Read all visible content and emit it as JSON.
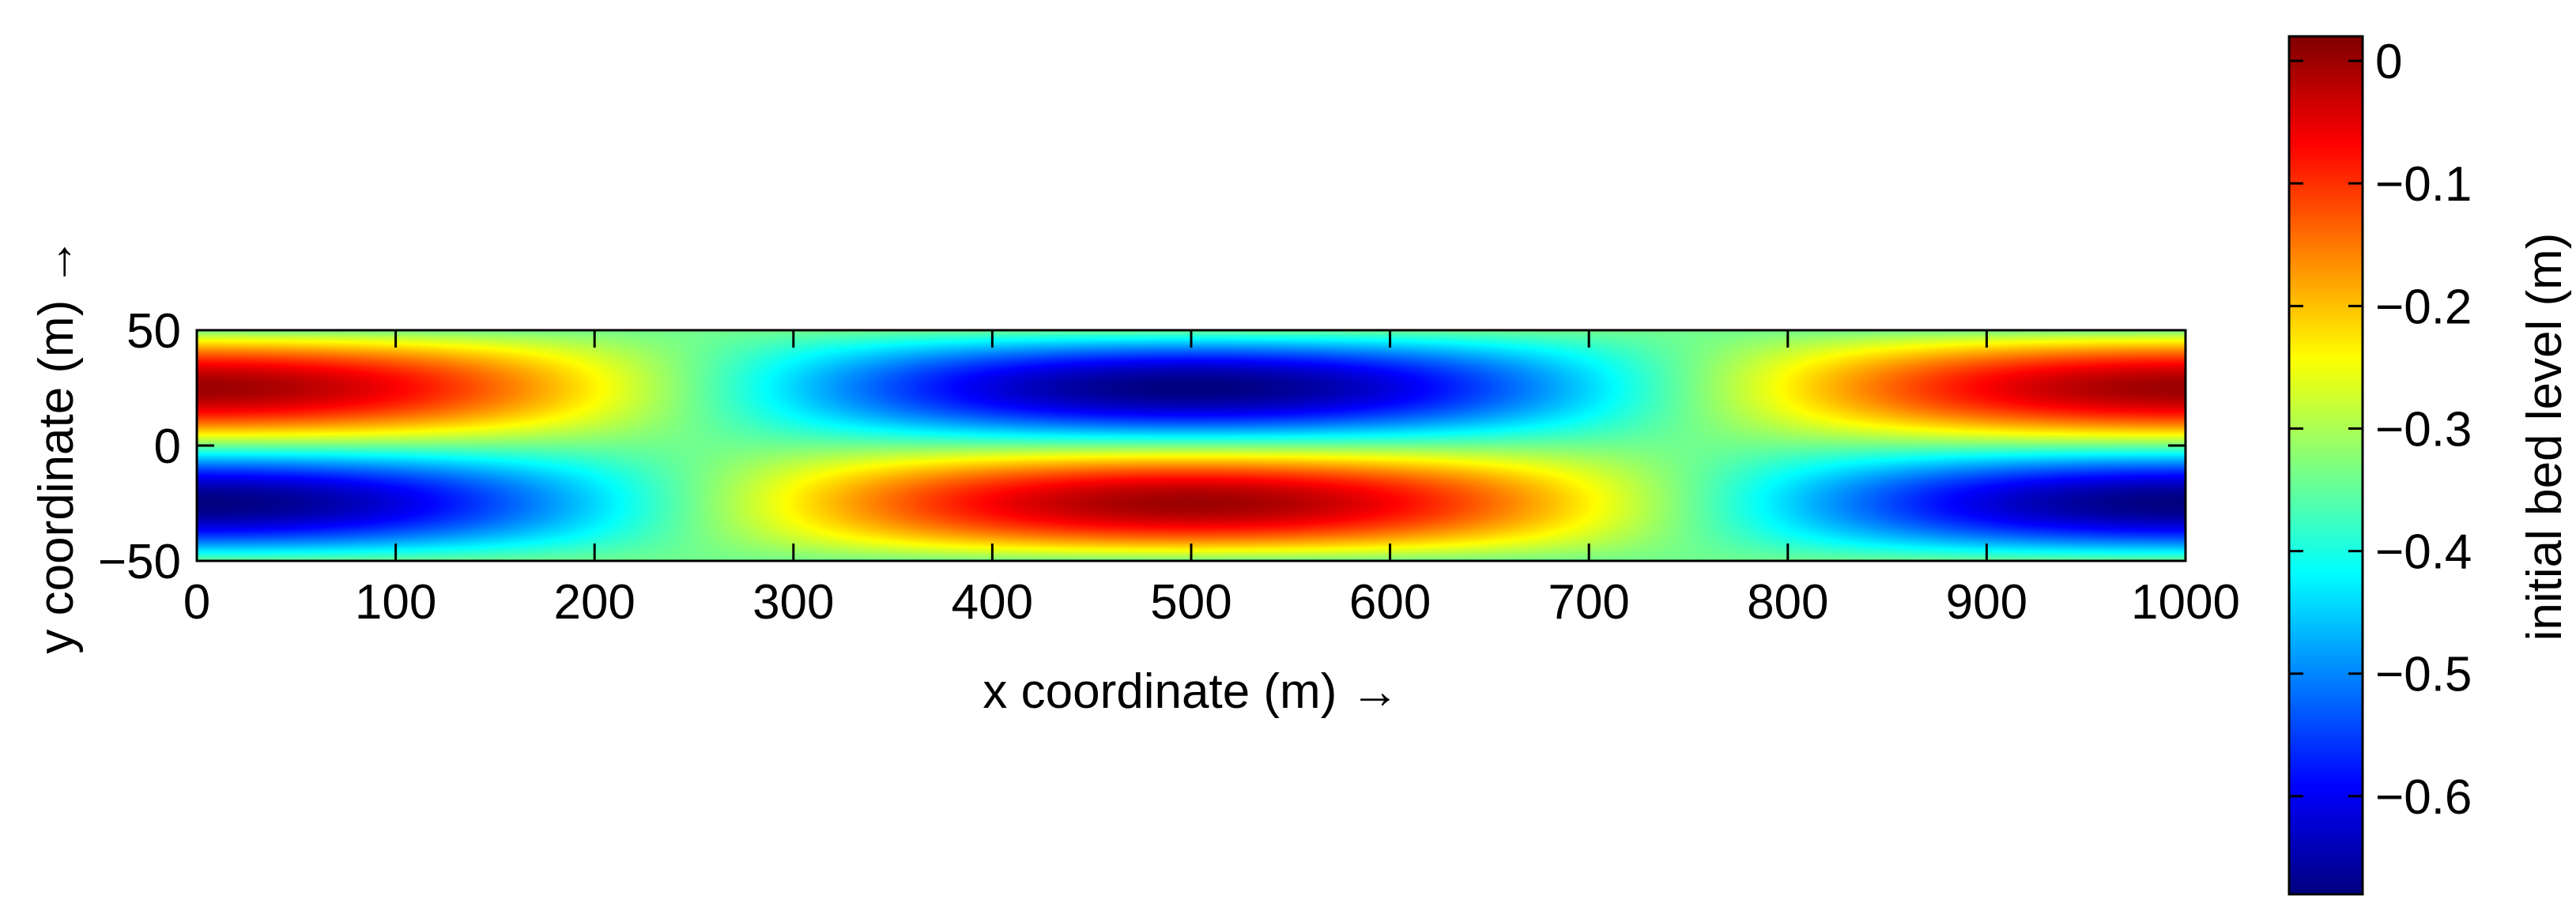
{
  "chart_data": {
    "type": "heatmap",
    "title": "",
    "xlabel": "x coordinate (m) →",
    "ylabel": "y coordinate (m) →",
    "colorbar_label": "initial bed level (m)",
    "x_range": [
      0,
      1000
    ],
    "y_range": [
      -50,
      50
    ],
    "x_ticks": [
      0,
      100,
      200,
      300,
      400,
      500,
      600,
      700,
      800,
      900,
      1000
    ],
    "x_tick_labels": [
      "0",
      "100",
      "200",
      "300",
      "400",
      "500",
      "600",
      "700",
      "800",
      "900",
      "1000"
    ],
    "y_ticks": [
      -50,
      0,
      50
    ],
    "y_tick_labels": [
      "−50",
      "0",
      "50"
    ],
    "colorbar_range": [
      -0.68,
      0.02
    ],
    "colorbar_ticks": [
      0,
      -0.1,
      -0.2,
      -0.3,
      -0.4,
      -0.5,
      -0.6
    ],
    "colorbar_tick_labels": [
      "0",
      "−0.1",
      "−0.2",
      "−0.3",
      "−0.4",
      "−0.5",
      "−0.6"
    ],
    "colormap": "jet",
    "grid": false,
    "field": {
      "description_of_values": "bed level z(x,y) in metres",
      "mean_level": -0.34,
      "amplitude": 0.34,
      "x_period": 1000,
      "y_period": 100,
      "notable_points": [
        {
          "x": 500,
          "y": 25,
          "z": -0.68
        },
        {
          "x": 500,
          "y": -25,
          "z": 0.0
        },
        {
          "x": 0,
          "y": -25,
          "z": -0.68
        },
        {
          "x": 1000,
          "y": -25,
          "z": -0.68
        },
        {
          "x": 0,
          "y": 25,
          "z": 0.0
        },
        {
          "x": 1000,
          "y": 25,
          "z": 0.0
        }
      ]
    }
  }
}
